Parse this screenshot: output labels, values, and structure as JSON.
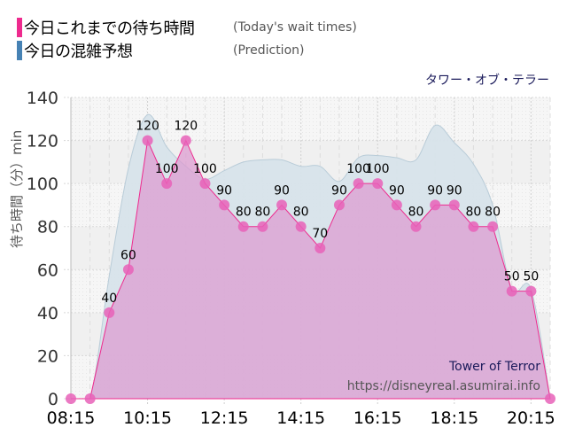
{
  "legend": {
    "items": [
      {
        "label_jp": "今日これまでの待ち時間",
        "label_en": "(Today's wait times)",
        "color": "#ee2a8e"
      },
      {
        "label_jp": "今日の混雑予想",
        "label_en": "(Prediction)",
        "color": "#4682b4"
      }
    ]
  },
  "attraction_name": "タワー・オブ・テラー",
  "y_axis_label": "待ち時間（分）min",
  "watermark": {
    "title": "Tower of Terror",
    "url": "https://disneyreal.asumirai.info"
  },
  "chart_data": {
    "type": "area",
    "title": "",
    "xlabel": "",
    "ylabel": "待ち時間（分）min",
    "ylim": [
      0,
      140
    ],
    "yticks": [
      0,
      20,
      40,
      60,
      80,
      100,
      120,
      140
    ],
    "xtick_labels": [
      "08:15",
      "10:15",
      "12:15",
      "14:15",
      "16:15",
      "18:15",
      "20:15"
    ],
    "grid": true,
    "legend_position": "top-left",
    "x": [
      "08:15",
      "08:45",
      "09:15",
      "09:45",
      "10:15",
      "10:45",
      "11:15",
      "11:45",
      "12:15",
      "12:45",
      "13:15",
      "13:45",
      "14:15",
      "14:45",
      "15:15",
      "15:45",
      "16:15",
      "16:45",
      "17:15",
      "17:45",
      "18:15",
      "18:45",
      "19:15",
      "19:45",
      "20:15",
      "20:45"
    ],
    "series": [
      {
        "name": "今日これまでの待ち時間 (Today's wait times)",
        "color": "#ee2a8e",
        "labeled": true,
        "values": [
          0,
          0,
          40,
          60,
          120,
          100,
          120,
          100,
          90,
          80,
          80,
          90,
          80,
          70,
          90,
          100,
          100,
          90,
          80,
          90,
          90,
          80,
          80,
          50,
          50,
          0
        ]
      },
      {
        "name": "今日の混雑予想 (Prediction)",
        "color": "#4682b4",
        "labeled": false,
        "values": [
          0,
          0,
          57,
          107,
          132,
          117,
          108,
          102,
          106,
          110,
          111,
          111,
          108,
          108,
          101,
          112,
          113,
          112,
          111,
          127,
          119,
          109,
          90,
          51,
          51,
          0
        ]
      }
    ]
  }
}
